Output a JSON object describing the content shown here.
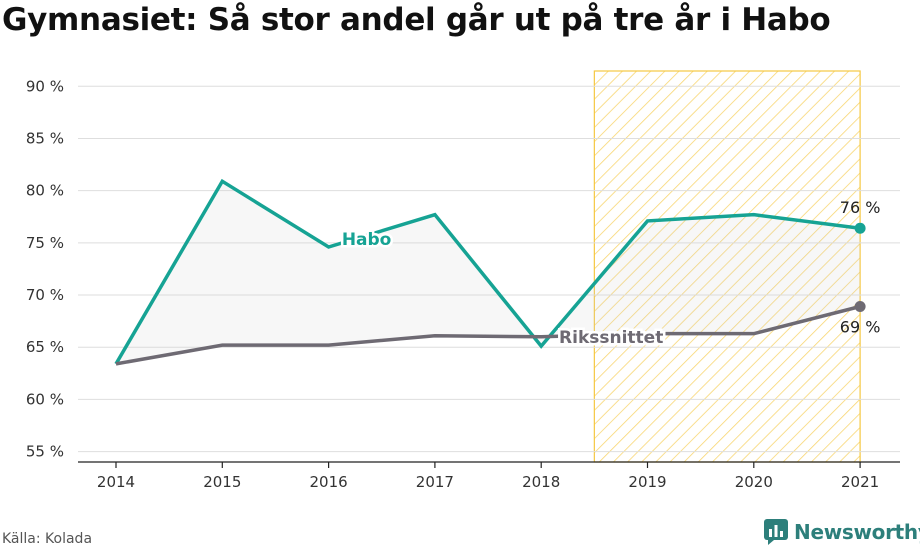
{
  "title": "Gymnasiet: Så stor andel går ut på tre år i Habo",
  "source": "Källa: Kolada",
  "brand": {
    "name": "Newsworthy",
    "icon": "newsworthy-logo-icon",
    "color": "#2d7f7b"
  },
  "chart_data": {
    "type": "line",
    "title": "Gymnasiet: Så stor andel går ut på tre år i Habo",
    "x": [
      "2014",
      "2015",
      "2016",
      "2017",
      "2018",
      "2019",
      "2020",
      "2021"
    ],
    "yticks": [
      55,
      60,
      65,
      70,
      75,
      80,
      85,
      90
    ],
    "ytick_labels": [
      "55 %",
      "60 %",
      "65 %",
      "70 %",
      "75 %",
      "80 %",
      "85 %",
      "90 %"
    ],
    "ylim": [
      54,
      93
    ],
    "grid": true,
    "highlight_range": [
      "2018.5",
      "2021"
    ],
    "highlight_color": "#f5c842",
    "series": [
      {
        "name": "Habo",
        "color": "#16a394",
        "values": [
          63.4,
          80.9,
          74.6,
          77.7,
          65.1,
          77.1,
          77.7,
          76.4
        ],
        "end_label": "76 %"
      },
      {
        "name": "Rikssnittet",
        "color": "#6e6a73",
        "values": [
          63.4,
          65.2,
          65.2,
          66.1,
          66.0,
          66.3,
          66.3,
          68.9
        ],
        "end_label": "69 %"
      }
    ]
  }
}
